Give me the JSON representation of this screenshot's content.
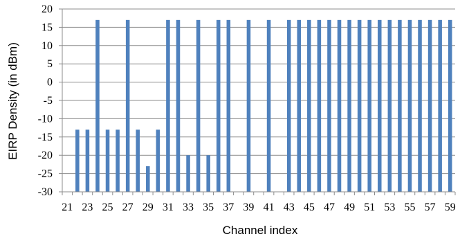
{
  "chart_data": {
    "type": "bar",
    "title": "",
    "xlabel": "Channel index",
    "ylabel": "EIRP Density (in dBm)",
    "ylim": [
      -30,
      20
    ],
    "yticks": [
      20,
      15,
      10,
      5,
      0,
      -5,
      -10,
      -15,
      -20,
      -25,
      -30
    ],
    "xlim": [
      21,
      59
    ],
    "xticks": [
      21,
      23,
      25,
      27,
      29,
      31,
      33,
      35,
      37,
      39,
      41,
      43,
      45,
      47,
      49,
      51,
      53,
      55,
      57,
      59
    ],
    "grid": "horizontal",
    "legend": "none",
    "bar_color": "#4f81bd",
    "categories": [
      21,
      22,
      23,
      24,
      25,
      26,
      27,
      28,
      29,
      30,
      31,
      32,
      33,
      34,
      35,
      36,
      37,
      38,
      39,
      40,
      41,
      42,
      43,
      44,
      45,
      46,
      47,
      48,
      49,
      50,
      51,
      52,
      53,
      54,
      55,
      56,
      57,
      58,
      59
    ],
    "values": [
      null,
      -13,
      -13,
      17,
      -13,
      -13,
      17,
      -13,
      -23,
      -13,
      17,
      17,
      -20,
      17,
      -20,
      17,
      17,
      null,
      17,
      null,
      17,
      null,
      17,
      17,
      17,
      17,
      17,
      17,
      17,
      17,
      17,
      17,
      17,
      17,
      17,
      17,
      17,
      17,
      17
    ]
  }
}
